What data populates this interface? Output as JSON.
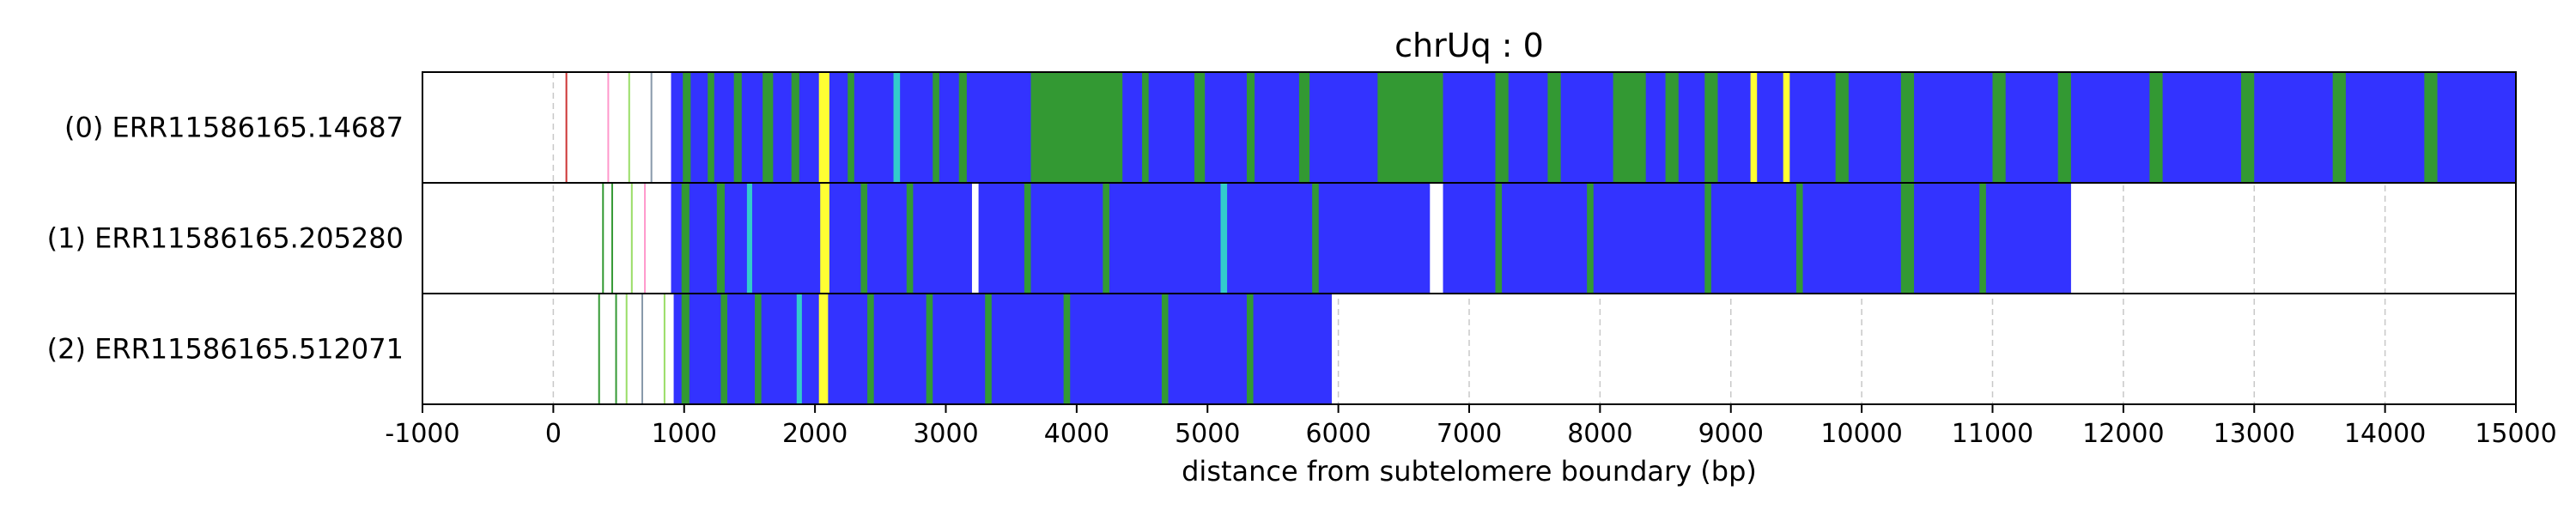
{
  "chart_data": {
    "type": "heatmap",
    "title": "chrUq : 0",
    "xlabel": "distance from subtelomere boundary (bp)",
    "ylabel": "",
    "xlim": [
      -1000,
      15000
    ],
    "xticks": [
      "-1000",
      "0",
      "1000",
      "2000",
      "3000",
      "4000",
      "5000",
      "6000",
      "7000",
      "8000",
      "9000",
      "10000",
      "11000",
      "12000",
      "13000",
      "14000",
      "15000"
    ],
    "grid": "vertical dashed",
    "colors": {
      "blue": "#3333ff",
      "green": "#339933",
      "yellow": "#ffff33",
      "cyan": "#33cccc",
      "gray": "#8899aa",
      "pink": "#ff99cc",
      "red": "#cc3333",
      "light_green": "#99dd66",
      "white": "#ffffff"
    },
    "rows": [
      {
        "label": "(0) ERR11586165.14687",
        "read_start": 900,
        "read_end": 15000,
        "base_color": "blue",
        "segments": [
          {
            "start": 990,
            "end": 1050,
            "color": "green"
          },
          {
            "start": 1180,
            "end": 1230,
            "color": "green"
          },
          {
            "start": 1380,
            "end": 1440,
            "color": "green"
          },
          {
            "start": 1600,
            "end": 1680,
            "color": "green"
          },
          {
            "start": 1820,
            "end": 1880,
            "color": "green"
          },
          {
            "start": 2030,
            "end": 2110,
            "color": "yellow"
          },
          {
            "start": 2250,
            "end": 2300,
            "color": "green"
          },
          {
            "start": 2600,
            "end": 2650,
            "color": "cyan"
          },
          {
            "start": 2900,
            "end": 2950,
            "color": "green"
          },
          {
            "start": 3100,
            "end": 3160,
            "color": "green"
          },
          {
            "start": 3650,
            "end": 4350,
            "color": "green"
          },
          {
            "start": 4500,
            "end": 4550,
            "color": "green"
          },
          {
            "start": 4900,
            "end": 4980,
            "color": "green"
          },
          {
            "start": 5300,
            "end": 5360,
            "color": "green"
          },
          {
            "start": 5700,
            "end": 5780,
            "color": "green"
          },
          {
            "start": 6300,
            "end": 6800,
            "color": "green"
          },
          {
            "start": 7200,
            "end": 7300,
            "color": "green"
          },
          {
            "start": 7600,
            "end": 7700,
            "color": "green"
          },
          {
            "start": 8100,
            "end": 8350,
            "color": "green"
          },
          {
            "start": 8500,
            "end": 8600,
            "color": "green"
          },
          {
            "start": 8800,
            "end": 8900,
            "color": "green"
          },
          {
            "start": 9150,
            "end": 9200,
            "color": "yellow"
          },
          {
            "start": 9400,
            "end": 9450,
            "color": "yellow"
          },
          {
            "start": 9800,
            "end": 9900,
            "color": "green"
          },
          {
            "start": 10300,
            "end": 10400,
            "color": "green"
          },
          {
            "start": 11000,
            "end": 11100,
            "color": "green"
          },
          {
            "start": 11500,
            "end": 11600,
            "color": "green"
          },
          {
            "start": 12200,
            "end": 12300,
            "color": "green"
          },
          {
            "start": 12900,
            "end": 13000,
            "color": "green"
          },
          {
            "start": 13600,
            "end": 13700,
            "color": "green"
          },
          {
            "start": 14300,
            "end": 14400,
            "color": "green"
          }
        ],
        "lines": [
          {
            "x": 100,
            "color": "red"
          },
          {
            "x": 420,
            "color": "pink"
          },
          {
            "x": 580,
            "color": "light_green"
          },
          {
            "x": 750,
            "color": "gray"
          }
        ]
      },
      {
        "label": "(1) ERR11586165.205280",
        "read_start": 900,
        "read_end": 11600,
        "base_color": "blue",
        "segments": [
          {
            "start": 980,
            "end": 1040,
            "color": "green"
          },
          {
            "start": 1250,
            "end": 1310,
            "color": "green"
          },
          {
            "start": 1480,
            "end": 1520,
            "color": "cyan"
          },
          {
            "start": 2040,
            "end": 2110,
            "color": "yellow"
          },
          {
            "start": 2350,
            "end": 2400,
            "color": "green"
          },
          {
            "start": 2700,
            "end": 2750,
            "color": "green"
          },
          {
            "start": 3200,
            "end": 3250,
            "color": "white"
          },
          {
            "start": 3600,
            "end": 3650,
            "color": "green"
          },
          {
            "start": 4200,
            "end": 4250,
            "color": "green"
          },
          {
            "start": 5100,
            "end": 5150,
            "color": "cyan"
          },
          {
            "start": 5800,
            "end": 5850,
            "color": "green"
          },
          {
            "start": 6700,
            "end": 6800,
            "color": "white"
          },
          {
            "start": 7200,
            "end": 7250,
            "color": "green"
          },
          {
            "start": 7900,
            "end": 7950,
            "color": "green"
          },
          {
            "start": 8800,
            "end": 8850,
            "color": "green"
          },
          {
            "start": 9500,
            "end": 9550,
            "color": "green"
          },
          {
            "start": 10300,
            "end": 10400,
            "color": "green"
          },
          {
            "start": 10900,
            "end": 10950,
            "color": "green"
          }
        ],
        "lines": [
          {
            "x": 380,
            "color": "green"
          },
          {
            "x": 450,
            "color": "green"
          },
          {
            "x": 600,
            "color": "light_green"
          },
          {
            "x": 700,
            "color": "pink"
          }
        ]
      },
      {
        "label": "(2) ERR11586165.512071",
        "read_start": 920,
        "read_end": 5950,
        "base_color": "blue",
        "segments": [
          {
            "start": 980,
            "end": 1040,
            "color": "green"
          },
          {
            "start": 1280,
            "end": 1330,
            "color": "green"
          },
          {
            "start": 1540,
            "end": 1590,
            "color": "green"
          },
          {
            "start": 1860,
            "end": 1900,
            "color": "cyan"
          },
          {
            "start": 2030,
            "end": 2100,
            "color": "yellow"
          },
          {
            "start": 2400,
            "end": 2450,
            "color": "green"
          },
          {
            "start": 2850,
            "end": 2900,
            "color": "green"
          },
          {
            "start": 3300,
            "end": 3350,
            "color": "green"
          },
          {
            "start": 3900,
            "end": 3950,
            "color": "green"
          },
          {
            "start": 4650,
            "end": 4700,
            "color": "green"
          },
          {
            "start": 5300,
            "end": 5350,
            "color": "green"
          }
        ],
        "lines": [
          {
            "x": 350,
            "color": "green"
          },
          {
            "x": 480,
            "color": "green"
          },
          {
            "x": 560,
            "color": "light_green"
          },
          {
            "x": 680,
            "color": "gray"
          },
          {
            "x": 850,
            "color": "light_green"
          }
        ]
      }
    ]
  }
}
